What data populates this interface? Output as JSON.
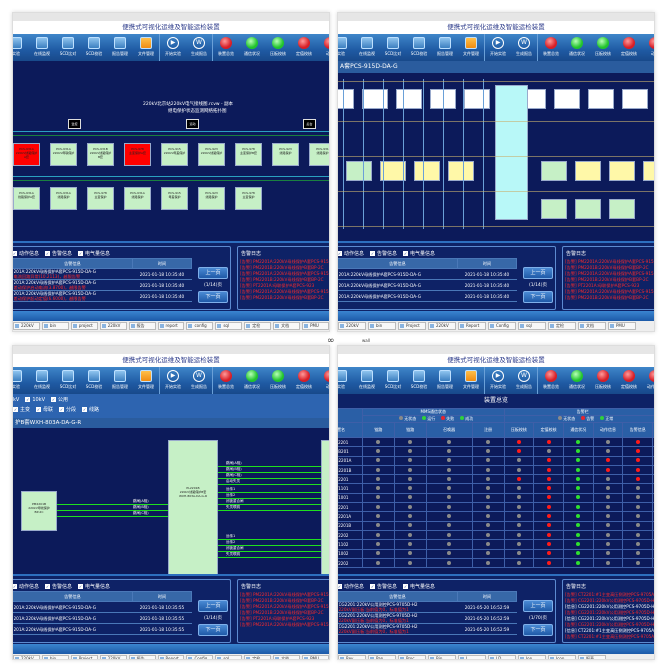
{
  "title": "便携式可视化运维及智能运检装置",
  "separator_icon": "infinity-icon",
  "separator_text": "wall",
  "toolbar_left": [
    "实验",
    "在线监视",
    "SCD比对",
    "SCD校验",
    "报告管理",
    "文件管理"
  ],
  "toolbar_mid": [
    {
      "label": "开始实验",
      "icon": "play-icon",
      "glyph": "▶"
    },
    {
      "label": "生成报告",
      "icon": "word-icon",
      "glyph": "W"
    }
  ],
  "colors": {
    "red": "#e8252d",
    "green": "#2fd13a",
    "navy": "#0c1a5a",
    "box_green": "#c6f0c6",
    "cyan": "#b8f8f8",
    "yellow": "#fff8a8"
  },
  "panels": [
    {
      "lamps": [
        {
          "label": "装置总览",
          "color": "red"
        },
        {
          "label": "通信状况",
          "color": "green"
        },
        {
          "label": "压板校核",
          "color": "green"
        },
        {
          "label": "定值校核",
          "color": "red"
        },
        {
          "label": "动作",
          "color": "red"
        }
      ],
      "diagram": {
        "caption1": "220kV北京站220kV电气接线图.rcvw - 副本",
        "caption2": "继电保护状态监测网络拓扑图",
        "monitors": [
          "监控",
          "远动",
          "后台"
        ],
        "row1": [
          [
            "PCS-931A",
            "220kV线路保护A套"
          ],
          [
            "PCS-931A",
            "220kV母联保护"
          ],
          [
            "PCS-931B",
            "220kV线路保护B套"
          ],
          [
            "PCS-978",
            "主变保护A套"
          ],
          [
            "PCS-915",
            "220kV母差保护"
          ],
          [
            "PCS-923",
            "220kV线路保护"
          ],
          [
            "PCS-978",
            "主变保护B套"
          ],
          [
            "PCS-923",
            "线路保护"
          ],
          [
            "PCS-931",
            "线路保护"
          ]
        ],
        "row1_fault": [
          0,
          3
        ],
        "row2": [
          [
            "PCS-931A",
            "线路保护A套"
          ],
          [
            "PCS-931A",
            "线路保护"
          ],
          [
            "PCS-978",
            "主变保护"
          ],
          [
            "PCS-931A",
            "线路保护"
          ],
          [
            "PCS-915",
            "母差保护"
          ],
          [
            "PCS-923",
            "线路保护"
          ],
          [
            "PCS-978",
            "主变保护"
          ]
        ]
      },
      "alerts": {
        "checks": [
          "动作信息",
          "告警信息",
          "电气量信息"
        ],
        "headers": [
          "告警信息",
          "时间"
        ],
        "rows": [
          {
            "device": "201A:220kV母线保护A套PCS-915D-DA-G",
            "msg": "电流回路异常(10.2113)，越限告警",
            "time": "2021-01-18 10:35:40"
          },
          {
            "device": "201A:220kV母线保护A套PCS-915D-DA-G",
            "msg": "差动保护启动电流(3.8700)，越限告警",
            "time": "2021-01-18 10:35:40"
          },
          {
            "device": "201A:220kV母线保护A套PCS-915D-DA-G",
            "msg": "差动保护起动定值(6.6000)，越限告警",
            "time": "2021-01-18 10:35:40"
          }
        ],
        "prev": "上一页",
        "page": "(1/14)页",
        "next": "下一页",
        "log_title": "告警日志",
        "log": [
          "[告警] PM2201A:220kV母线保护A套PCS-915",
          "[告警] PM2201B:220kV母线保护B套BP-2C",
          "[告警] PM2201A:220kV母线保护A套PCS-915",
          "[告警] PM2201B:220kV母线保护B套BP-2C",
          "[告警] PT2201A:母联保护A套PCS-923",
          "[告警] PM2201A:220kV母线保护A套PCS-915",
          "[告警] PM2201B:220kV母线保护B套BP-2C"
        ]
      },
      "taskbar": [
        "220kV",
        "bin",
        "project",
        "220kV",
        "报告",
        "report",
        "config",
        "sql",
        "定检",
        "文档",
        "PMU"
      ]
    },
    {
      "lamps": [
        {
          "label": "装置总览",
          "color": "red"
        },
        {
          "label": "通信状况",
          "color": "green"
        },
        {
          "label": "压板校核",
          "color": "green"
        },
        {
          "label": "定值校核",
          "color": "red"
        },
        {
          "label": "动作",
          "color": "red"
        }
      ],
      "subheader": "A套PCS-915D-DA-G",
      "alerts": {
        "checks": [
          "动作信息",
          "告警信息",
          "电气量信息"
        ],
        "headers": [
          "告警信息",
          "时间"
        ],
        "rows": [
          {
            "device": "201A:220kV母线保护A套PCS-915D-DA-G",
            "msg": "",
            "time": "2021-01-18 10:35:40"
          },
          {
            "device": "201A:220kV母线保护A套PCS-915D-DA-G",
            "msg": "",
            "time": "2021-01-18 10:35:40"
          },
          {
            "device": "201A:220kV母线保护A套PCS-915D-DA-G",
            "msg": "",
            "time": "2021-01-18 10:35:40"
          }
        ],
        "prev": "上一页",
        "page": "(1/14)页",
        "next": "下一页",
        "log_title": "告警日志",
        "log": [
          "[告警] PM2201A:220kV母线保护A套PCS-915",
          "[告警] PM2201B:220kV母线保护B套BP-2C",
          "[告警] PM2201A:220kV母线保护A套PCS-915",
          "[告警] PM2201B:220kV母线保护B套BP-2C",
          "[告警] PT2201A:母联保护A套PCS-923",
          "[告警] PM2201A:220kV母线保护A套PCS-915",
          "[告警] PM2201B:220kV母线保护B套BP-2C"
        ]
      },
      "taskbar": [
        "220kV",
        "bin",
        "Project",
        "220kV",
        "Report",
        "Config",
        "sql",
        "定检",
        "文档",
        "PMU"
      ]
    },
    {
      "lamps": [
        {
          "label": "装置总览",
          "color": "red"
        },
        {
          "label": "通信状况",
          "color": "green"
        },
        {
          "label": "压板校核",
          "color": "green"
        },
        {
          "label": "定值校核",
          "color": "red"
        },
        {
          "label": "动作",
          "color": "red"
        }
      ],
      "filters1": [
        "kV",
        "10kV",
        "公用"
      ],
      "filters2": [
        "主变",
        "母联",
        "分段",
        "线路"
      ],
      "subheader": "护B套WXH-803A-DA-G-R",
      "diagram": {
        "left_box": [
          "PM2201B",
          "220kV母线保护",
          "BP-2C"
        ],
        "center_box": [
          "PL2201B",
          "220kV线路保护B套",
          "WXH-803A-DA-G-R"
        ],
        "signals": [
          "跳闸(A相)",
          "跳闸(B相)",
          "跳闸(C相)",
          "启动失灵",
          "远传1",
          "远传2",
          "闭锁重合闸",
          "失灵联跳"
        ]
      },
      "alerts": {
        "checks": [
          "动作信息",
          "告警信息",
          "电气量信息"
        ],
        "headers": [
          "告警信息",
          "时间"
        ],
        "rows": [
          {
            "device": "201A:220kV母线保护A套PCS-915D-DA-G",
            "msg": "",
            "time": "2021-01-18 10:35:55"
          },
          {
            "device": "201A:220kV母线保护A套PCS-915D-DA-G",
            "msg": "",
            "time": "2021-01-18 10:35:55"
          },
          {
            "device": "201A:220kV母线保护A套PCS-915D-DA-G",
            "msg": "",
            "time": "2021-01-18 10:35:55"
          }
        ],
        "prev": "上一页",
        "page": "(1/14)页",
        "next": "下一页",
        "log_title": "告警日志",
        "log": [
          "[告警] PM2201A:220kV母线保护A套PCS-915",
          "[告警] PM2201B:220kV母线保护B套BP-2C",
          "[告警] PM2201A:220kV母线保护A套PCS-915",
          "[告警] PM2201B:220kV母线保护B套BP-2C",
          "[告警] PT2201A:母联保护A套PCS-923",
          "[告警] PM2201A:220kV母线保护A套PCS-915"
        ]
      },
      "taskbar": [
        "220kV",
        "bin",
        "Project",
        "220kV",
        "报告",
        "Report",
        "Config",
        "sql",
        "定检",
        "文档",
        "PMU"
      ]
    },
    {
      "lamps": [
        {
          "label": "装置总览",
          "color": "red"
        },
        {
          "label": "通信状况",
          "color": "green"
        },
        {
          "label": "压板校核",
          "color": "red"
        },
        {
          "label": "定值校核",
          "color": "red"
        },
        {
          "label": "动作信息",
          "color": "red"
        },
        {
          "label": "告警",
          "color": "red"
        }
      ],
      "overview": {
        "title": "装置总览",
        "group1": "MMS通信状态",
        "group2": "告警栏",
        "legend1": [
          {
            "label": "无状态",
            "color": "#8a8a8a"
          },
          {
            "label": "运行",
            "color": "#2fd13a"
          },
          {
            "label": "失败",
            "color": "#e8252d"
          },
          {
            "label": "成功",
            "color": "#2fd13a"
          }
        ],
        "legend2": [
          {
            "label": "无状态",
            "color": "#8a8a8a"
          },
          {
            "label": "告警",
            "color": "#e8252d"
          },
          {
            "label": "正常",
            "color": "#2fd13a"
          }
        ],
        "columns": [
          "装置名",
          "链路",
          "链路",
          "召唤器",
          "注册",
          "压板校核",
          "定值校核",
          "通信状况",
          "动作信息",
          "告警信息",
          "电"
        ],
        "rows": [
          {
            "name": "S22201",
            "status": "ggggrrgsr"
          },
          {
            "name": "B5B201",
            "status": "ggggrggsr"
          },
          {
            "name": "AB2201A",
            "status": "gggggrgrr"
          },
          {
            "name": "AB2201B",
            "status": "gggggrgrr"
          },
          {
            "name": "CT2201",
            "status": "ggggrrgsr"
          },
          {
            "name": "CT1101",
            "status": "gggggrgss"
          },
          {
            "name": "CT1001",
            "status": "gggggrgss"
          },
          {
            "name": "BT2201",
            "status": "gggggrgss"
          },
          {
            "name": "BT2201A",
            "status": "gggggrgss"
          },
          {
            "name": "BT2201B",
            "status": "gggggrgss"
          },
          {
            "name": "CT2202",
            "status": "gggggrgss"
          },
          {
            "name": "CT1102",
            "status": "gggggrgss"
          },
          {
            "name": "CT1002",
            "status": "gggggrgss"
          },
          {
            "name": "BT2202",
            "status": "gggggrgss"
          }
        ]
      },
      "alerts": {
        "checks": [
          "动作信息",
          "告警信息",
          "电气量信息"
        ],
        "headers": [
          "告警信息",
          "时间"
        ],
        "rows": [
          {
            "device": "CG2201:220kV公用测控PCS-9705D-H2",
            "msg": "220kV副压板:当前值为0，标准值为1",
            "time": "2021-05-20 16:52:59"
          },
          {
            "device": "CG2201:220kV公用测控PCS-9705D-H2",
            "msg": "220kV副压板:当前值为0，标准值为1",
            "time": "2021-05-20 16:52:59"
          },
          {
            "device": "CG2201:220kV公用测控PCS-9705D-H2",
            "msg": "220kV副压板:当前值为0，标准值为1",
            "time": "2021-05-20 16:52:59"
          }
        ],
        "prev": "上一页",
        "page": "(1/70)页",
        "next": "下一页",
        "log_title": "告警日志",
        "log": [
          "[告警] CT2201:#1主变高压侧测控PCS-9705A",
          "[告警] CG2201:220kV公用测控PCS-9705D-H2",
          "[信息] CG2201:220kV公用测控PCS-9705D-H2",
          "[告警] CG2201:220kV公用测控PCS-9705D-H2",
          "[信息] CG2201:220kV公用测控PCS-9705D-H2",
          "[告警] CG2201:220kV公用测控PCS-9705D-H2",
          "[信息] CT2201:#1主变高压侧测控PCS-9705A",
          "[告警] CT2201:#1主变高压侧测控PCS-9705A"
        ]
      },
      "taskbar": [
        "Rev",
        "Pap",
        "Proc",
        "Bin",
        "L",
        "LD",
        "Iop",
        "Icon",
        "报表"
      ]
    }
  ]
}
